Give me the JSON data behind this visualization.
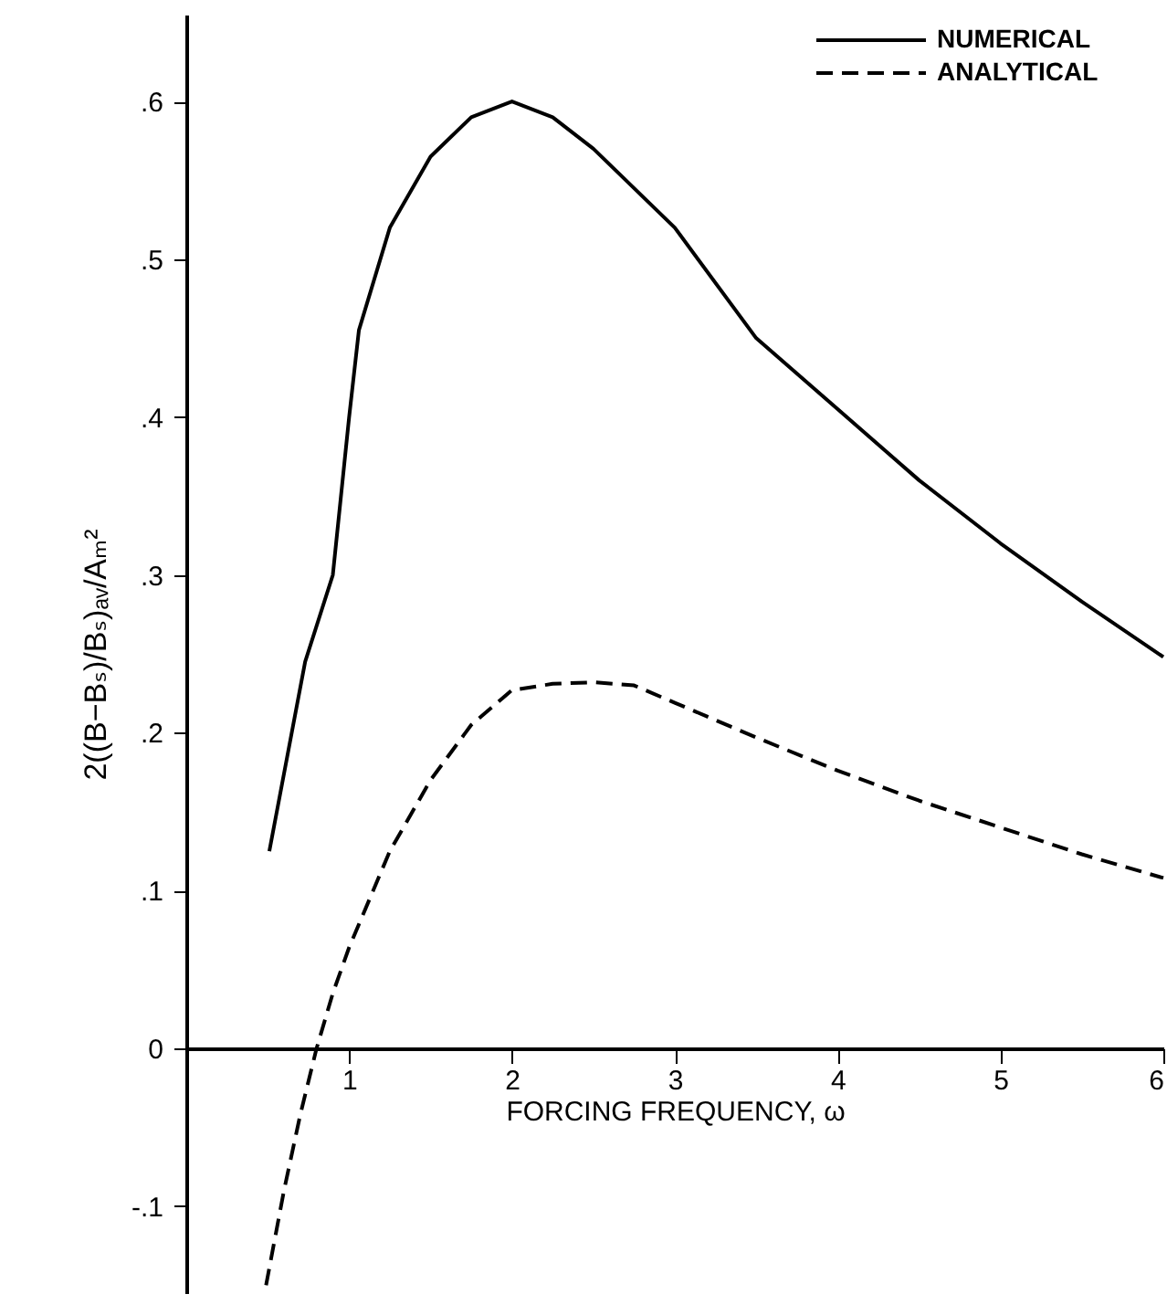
{
  "chart_data": {
    "type": "line",
    "xlabel": "FORCING FREQUENCY, ω",
    "ylabel": "2((B−Bₛ)/Bₛ)ₐᵥ/Aₘ²",
    "xlim": [
      0,
      6
    ],
    "ylim": [
      -0.155,
      0.655
    ],
    "xticks": [
      1,
      2,
      3,
      4,
      5,
      6
    ],
    "yticks": [
      {
        "value": -0.1,
        "label": "-.1"
      },
      0,
      {
        "value": 0.1,
        "label": ".1"
      },
      {
        "value": 0.2,
        "label": ".2"
      },
      {
        "value": 0.3,
        "label": ".3"
      },
      {
        "value": 0.4,
        "label": ".4"
      },
      {
        "value": 0.5,
        "label": ".5"
      },
      {
        "value": 0.6,
        "label": ".6"
      }
    ],
    "grid": false,
    "legend": "top right",
    "marker": "none",
    "series": [
      {
        "name": "NUMERICAL",
        "color": "#000000",
        "line_style": "solid",
        "x": [
          0.51,
          0.73,
          0.9,
          1.0,
          1.06,
          1.25,
          1.5,
          1.75,
          2.0,
          2.25,
          2.5,
          3.0,
          3.5,
          4.0,
          4.5,
          5.0,
          5.5,
          6.0
        ],
        "values": [
          0.125,
          0.245,
          0.3,
          0.4,
          0.455,
          0.52,
          0.565,
          0.59,
          0.6,
          0.59,
          0.57,
          0.52,
          0.45,
          0.405,
          0.36,
          0.32,
          0.283,
          0.248
        ]
      },
      {
        "name": "ANALYTICAL",
        "color": "#000000",
        "line_style": "dashed",
        "x": [
          0.49,
          0.6,
          0.7,
          0.8,
          0.9,
          1.0,
          1.25,
          1.5,
          1.75,
          2.0,
          2.25,
          2.5,
          2.75,
          3.0,
          3.5,
          4.0,
          4.5,
          5.0,
          5.5,
          6.0
        ],
        "values": [
          -0.15,
          -0.09,
          -0.042,
          0,
          0.035,
          0.064,
          0.125,
          0.17,
          0.205,
          0.227,
          0.231,
          0.232,
          0.23,
          0.219,
          0.197,
          0.176,
          0.157,
          0.14,
          0.123,
          0.108
        ]
      }
    ]
  }
}
